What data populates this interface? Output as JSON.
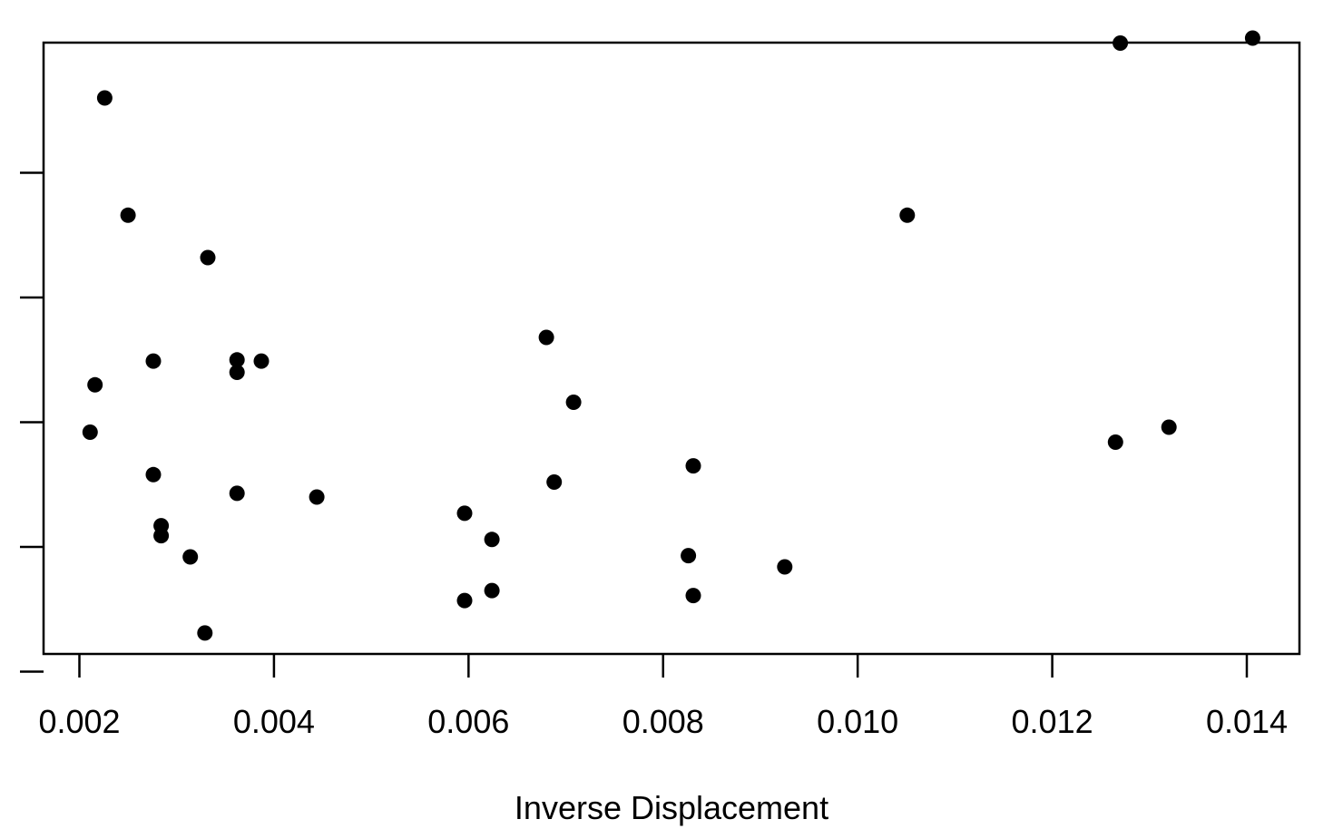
{
  "chart_data": {
    "type": "scatter",
    "title": "",
    "xlabel": "Inverse Displacement",
    "ylabel": "",
    "xlim": [
      0.002,
      0.014
    ],
    "x_ticks": [
      0.002,
      0.004,
      0.006,
      0.008,
      0.01,
      0.012,
      0.014
    ],
    "x_tick_labels": [
      "0.002",
      "0.004",
      "0.006",
      "0.008",
      "0.010",
      "0.012",
      "0.014"
    ],
    "y_tick_count": 5,
    "y_tick_labels_visible": false,
    "grid": false,
    "legend": "none",
    "marker_color": "#000000",
    "series": [
      {
        "points": [
          {
            "x": 0.00226,
            "y": 3.6
          },
          {
            "x": 0.0025,
            "y": 2.66
          },
          {
            "x": 0.00332,
            "y": 2.32
          },
          {
            "x": 0.00216,
            "y": 1.3
          },
          {
            "x": 0.00276,
            "y": 1.49
          },
          {
            "x": 0.00362,
            "y": 1.5
          },
          {
            "x": 0.00362,
            "y": 1.4
          },
          {
            "x": 0.00387,
            "y": 1.49
          },
          {
            "x": 0.00211,
            "y": 0.92
          },
          {
            "x": 0.00276,
            "y": 0.58
          },
          {
            "x": 0.00362,
            "y": 0.43
          },
          {
            "x": 0.00444,
            "y": 0.4
          },
          {
            "x": 0.00284,
            "y": 0.17
          },
          {
            "x": 0.00284,
            "y": 0.09
          },
          {
            "x": 0.00314,
            "y": -0.08
          },
          {
            "x": 0.00329,
            "y": -0.69
          },
          {
            "x": 0.00596,
            "y": 0.27
          },
          {
            "x": 0.00624,
            "y": 0.06
          },
          {
            "x": 0.00596,
            "y": -0.43
          },
          {
            "x": 0.00624,
            "y": -0.35
          },
          {
            "x": 0.0068,
            "y": 1.68
          },
          {
            "x": 0.00708,
            "y": 1.16
          },
          {
            "x": 0.00688,
            "y": 0.52
          },
          {
            "x": 0.00831,
            "y": 0.65
          },
          {
            "x": 0.00826,
            "y": -0.07
          },
          {
            "x": 0.00831,
            "y": -0.39
          },
          {
            "x": 0.00925,
            "y": -0.16
          },
          {
            "x": 0.01051,
            "y": 2.66
          },
          {
            "x": 0.0127,
            "y": 4.04
          },
          {
            "x": 0.01406,
            "y": 4.08
          },
          {
            "x": 0.01265,
            "y": 0.84
          },
          {
            "x": 0.0132,
            "y": 0.96
          }
        ]
      }
    ]
  }
}
